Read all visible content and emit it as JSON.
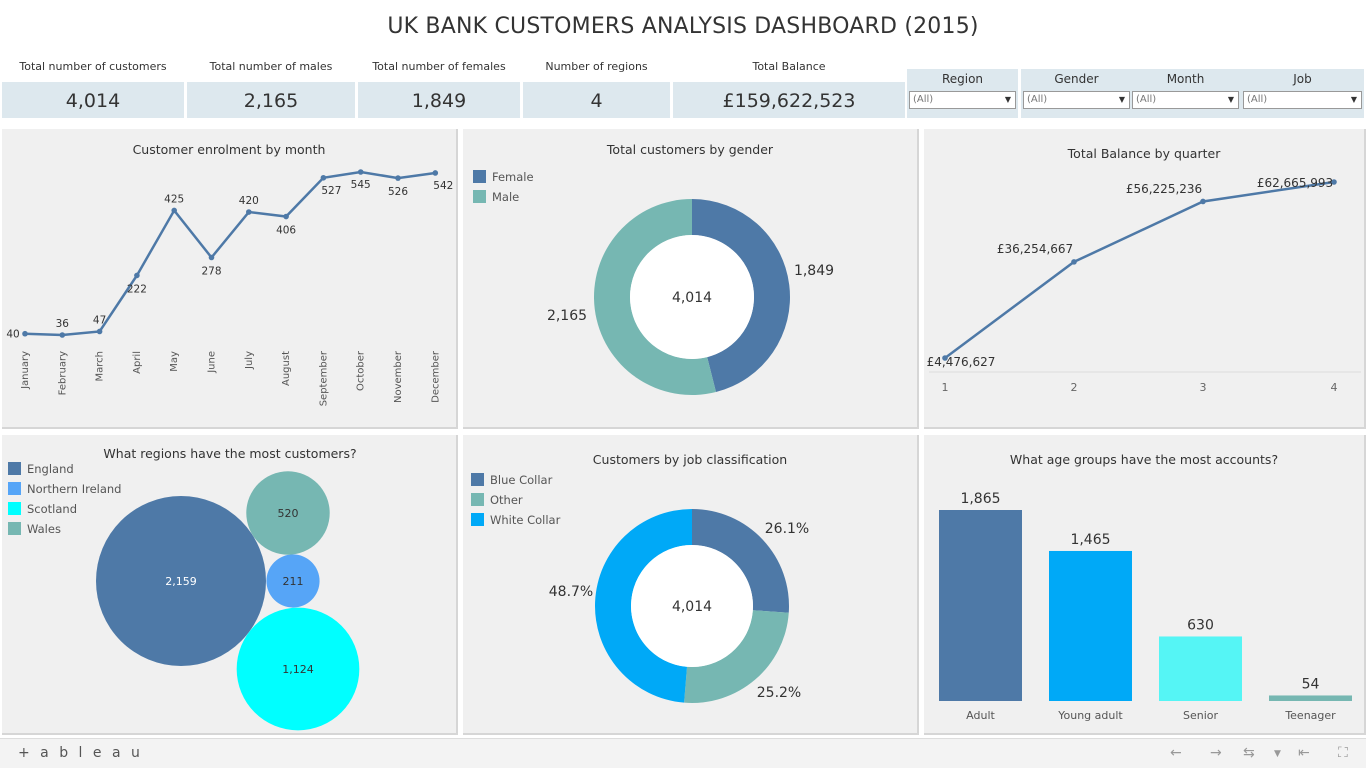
{
  "title": "UK BANK CUSTOMERS ANALYSIS DASHBOARD (2015)",
  "kpis": [
    {
      "label": "Total number of customers",
      "value": "4,014"
    },
    {
      "label": "Total number of males",
      "value": "2,165"
    },
    {
      "label": "Total number of females",
      "value": "1,849"
    },
    {
      "label": "Number of regions",
      "value": "4"
    },
    {
      "label": "Total Balance",
      "value": "£159,622,523"
    }
  ],
  "filters": [
    {
      "label": "Region",
      "value": "(All)"
    },
    {
      "label": "Gender",
      "value": "(All)"
    },
    {
      "label": "Month",
      "value": "(All)"
    },
    {
      "label": "Job",
      "value": "(All)"
    }
  ],
  "colors": {
    "dark_blue": "#4e79a7",
    "teal": "#76b7b2",
    "bright_blue": "#00a9f7",
    "light_blue": "#56a5f7",
    "cyan": "#00ffff",
    "light_cyan": "#55f5f5",
    "panel_bg": "#f0f0f0",
    "kpi_bg": "#dde8ee"
  },
  "chart_data": [
    {
      "id": "enrolment",
      "type": "line",
      "title": "Customer enrolment by month",
      "categories": [
        "January",
        "February",
        "March",
        "April",
        "May",
        "June",
        "July",
        "August",
        "September",
        "October",
        "November",
        "December"
      ],
      "values": [
        40,
        36,
        47,
        222,
        425,
        278,
        420,
        406,
        527,
        545,
        526,
        542
      ],
      "ylim": [
        0,
        600
      ]
    },
    {
      "id": "gender",
      "type": "pie",
      "title": "Total customers by gender",
      "center_label": "4,014",
      "slices": [
        {
          "name": "Female",
          "value": 1849,
          "label": "1,849"
        },
        {
          "name": "Male",
          "value": 2165,
          "label": "2,165"
        }
      ]
    },
    {
      "id": "balance",
      "type": "line",
      "title": "Total Balance by quarter",
      "categories": [
        "1",
        "2",
        "3",
        "4"
      ],
      "values": [
        4476627,
        36254667,
        56225236,
        62665993
      ],
      "labels": [
        "£4,476,627",
        "£36,254,667",
        "£56,225,236",
        "£62,665,993"
      ],
      "ylim": [
        0,
        66000000
      ]
    },
    {
      "id": "regions",
      "type": "scatter",
      "title": "What regions have the most customers?",
      "series": [
        {
          "name": "England",
          "value": 2159,
          "label": "2,159"
        },
        {
          "name": "Northern Ireland",
          "value": 211,
          "label": "211"
        },
        {
          "name": "Scotland",
          "value": 1124,
          "label": "1,124"
        },
        {
          "name": "Wales",
          "value": 520,
          "label": "520"
        }
      ]
    },
    {
      "id": "jobs",
      "type": "pie",
      "title": "Customers by job classification",
      "center_label": "4,014",
      "slices": [
        {
          "name": "Blue Collar",
          "value": 26.1,
          "label": "26.1%"
        },
        {
          "name": "Other",
          "value": 25.2,
          "label": "25.2%"
        },
        {
          "name": "White Collar",
          "value": 48.7,
          "label": "48.7%"
        }
      ]
    },
    {
      "id": "ages",
      "type": "bar",
      "title": "What age groups have the most accounts?",
      "categories": [
        "Adult",
        "Young adult",
        "Senior",
        "Teenager"
      ],
      "values": [
        1865,
        1465,
        630,
        54
      ],
      "labels": [
        "1,865",
        "1,465",
        "630",
        "54"
      ],
      "ylim": [
        0,
        2000
      ]
    }
  ],
  "footer": {
    "brand": "+ a b l e a u"
  }
}
